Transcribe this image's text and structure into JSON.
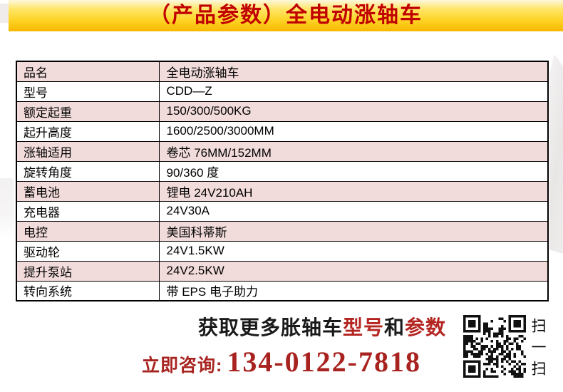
{
  "banner": {
    "title": "（产品参数）全电动涨轴车"
  },
  "table": {
    "rows": [
      {
        "label": "品名",
        "value": "全电动涨轴车"
      },
      {
        "label": "型号",
        "value": "CDD—Z"
      },
      {
        "label": "额定起重",
        "value": "150/300/500KG"
      },
      {
        "label": "起升高度",
        "value": "1600/2500/3000MM"
      },
      {
        "label": "涨轴适用",
        "value": "卷芯 76MM/152MM"
      },
      {
        "label": "旋转角度",
        "value": "90/360 度"
      },
      {
        "label": "蓄电池",
        "value": "锂电 24V210AH"
      },
      {
        "label": "充电器",
        "value": "24V30A"
      },
      {
        "label": "电控",
        "value": "美国科蒂斯"
      },
      {
        "label": "驱动轮",
        "value": "24V1.5KW"
      },
      {
        "label": "提升泵站",
        "value": "24V2.5KW"
      },
      {
        "label": "转向系统",
        "value": "带 EPS 电子助力"
      }
    ]
  },
  "footer": {
    "promo": {
      "part1": "获取更多胀轴车",
      "highlight1": "型号",
      "part2": "和",
      "highlight2": "参数"
    },
    "contact": {
      "label": "立即咨询:",
      "phone": "134-0122-7818"
    },
    "qr_caption": "扫一扫"
  },
  "colors": {
    "banner_text_red": "#c00000",
    "row_pink": "#f2dcdb",
    "highlight_red": "#b42521",
    "phone_red": "#a8231f",
    "banner_gold_top": "#fdf8dd",
    "banner_gold_bottom": "#f5b801"
  }
}
